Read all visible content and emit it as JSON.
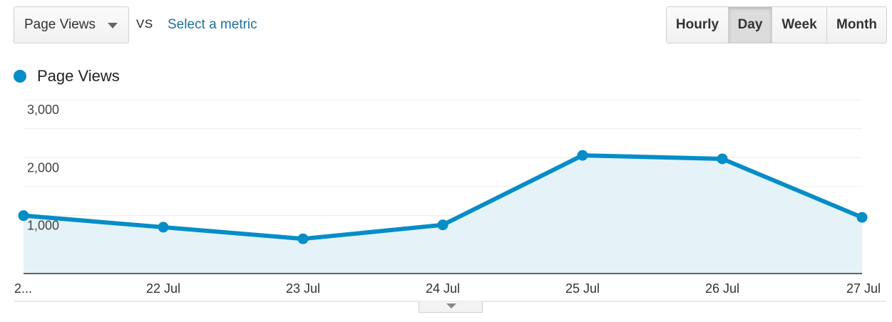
{
  "controls": {
    "metric_dropdown": "Page Views",
    "vs_label": "VS",
    "compare_link": "Select a metric",
    "granularity": [
      {
        "label": "Hourly",
        "active": false
      },
      {
        "label": "Day",
        "active": true
      },
      {
        "label": "Week",
        "active": false
      },
      {
        "label": "Month",
        "active": false
      }
    ]
  },
  "colors": {
    "series": "#058dc7",
    "area_fill": "#e5f3f9",
    "link": "#1f6f9a"
  },
  "chart_data": {
    "type": "area",
    "title": "",
    "xlabel": "",
    "ylabel": "",
    "series": [
      {
        "name": "Page Views",
        "values": [
          1000,
          800,
          600,
          840,
          2040,
          1980,
          970
        ]
      }
    ],
    "x": [
      "2...",
      "22 Jul",
      "23 Jul",
      "24 Jul",
      "25 Jul",
      "26 Jul",
      "27 Jul"
    ],
    "yticks": [
      {
        "value": 3000,
        "label": "3,000"
      },
      {
        "value": 2000,
        "label": "2,000"
      },
      {
        "value": 1000,
        "label": "1,000"
      }
    ],
    "ylim": [
      0,
      3000
    ],
    "grid": true,
    "legend": "top-left"
  }
}
